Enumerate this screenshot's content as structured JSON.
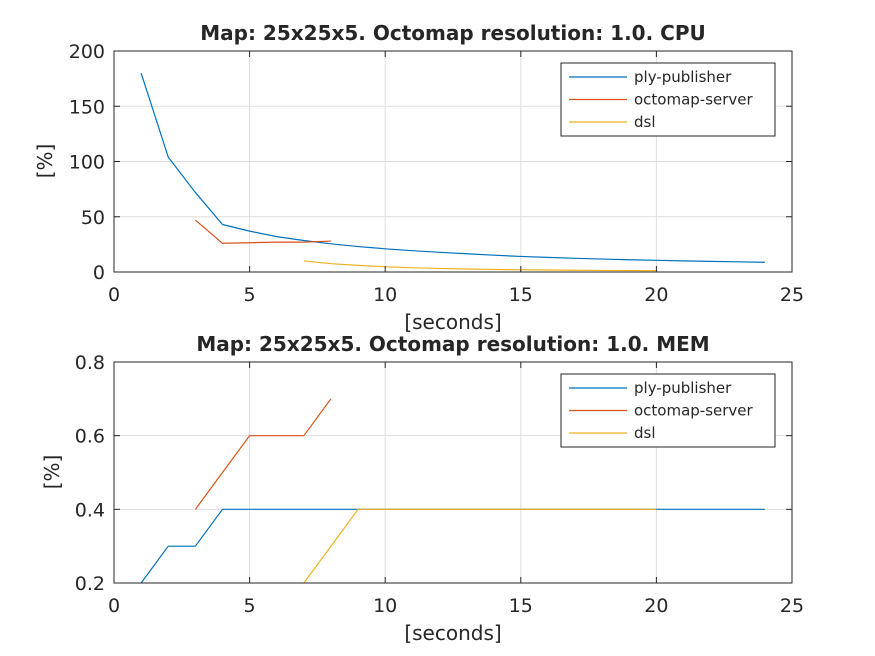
{
  "chart_data": [
    {
      "type": "line",
      "title": "Map: 25x25x5. Octomap resolution: 1.0. CPU",
      "xlabel": "[seconds]",
      "ylabel": "[%]",
      "xlim": [
        0,
        25
      ],
      "ylim": [
        0,
        200
      ],
      "xticks": [
        0,
        5,
        10,
        15,
        20,
        25
      ],
      "yticks": [
        0,
        50,
        100,
        150,
        200
      ],
      "xtick_labels": [
        "0",
        "5",
        "10",
        "15",
        "20",
        "25"
      ],
      "ytick_labels": [
        "0",
        "50",
        "100",
        "150",
        "200"
      ],
      "grid": true,
      "legend_position": "top-right",
      "series": [
        {
          "name": "ply-publisher",
          "color": "#0072BD",
          "x": [
            1,
            2,
            3,
            4,
            5,
            6,
            7,
            8,
            9,
            10,
            11,
            12,
            13,
            14,
            15,
            16,
            17,
            18,
            19,
            20,
            21,
            22,
            23,
            24
          ],
          "y": [
            180,
            104,
            72,
            43,
            37,
            32,
            28.5,
            25.5,
            23,
            21,
            19.3,
            17.8,
            16.5,
            15.2,
            14.1,
            13.2,
            12.4,
            11.7,
            11.1,
            10.6,
            10.1,
            9.6,
            9.2,
            8.8
          ]
        },
        {
          "name": "octomap-server",
          "color": "#D95319",
          "x": [
            3,
            4,
            5,
            6,
            7,
            8
          ],
          "y": [
            47,
            26,
            26.5,
            27,
            27,
            28
          ]
        },
        {
          "name": "dsl",
          "color": "#EDB120",
          "x": [
            7,
            8,
            9,
            10,
            11,
            12,
            13,
            14,
            15,
            16,
            17,
            18,
            19,
            20
          ],
          "y": [
            10,
            7.5,
            6,
            4.8,
            3.8,
            3.2,
            2.7,
            2.3,
            2,
            1.8,
            1.6,
            1.4,
            1.3,
            1.2
          ]
        }
      ]
    },
    {
      "type": "line",
      "title": "Map: 25x25x5. Octomap resolution: 1.0. MEM",
      "xlabel": "[seconds]",
      "ylabel": "[%]",
      "xlim": [
        0,
        25
      ],
      "ylim": [
        0.2,
        0.8
      ],
      "xticks": [
        0,
        5,
        10,
        15,
        20,
        25
      ],
      "yticks": [
        0.2,
        0.4,
        0.6,
        0.8
      ],
      "xtick_labels": [
        "0",
        "5",
        "10",
        "15",
        "20",
        "25"
      ],
      "ytick_labels": [
        "0.2",
        "0.4",
        "0.6",
        "0.8"
      ],
      "grid": true,
      "legend_position": "top-right",
      "series": [
        {
          "name": "ply-publisher",
          "color": "#0072BD",
          "x": [
            1,
            2,
            3,
            4,
            5,
            6,
            7,
            8,
            9,
            10,
            15,
            20,
            24
          ],
          "y": [
            0.2,
            0.3,
            0.3,
            0.4,
            0.4,
            0.4,
            0.4,
            0.4,
            0.4,
            0.4,
            0.4,
            0.4,
            0.4
          ]
        },
        {
          "name": "octomap-server",
          "color": "#D95319",
          "x": [
            3,
            4,
            5,
            6,
            7,
            8
          ],
          "y": [
            0.4,
            0.5,
            0.6,
            0.6,
            0.6,
            0.7
          ]
        },
        {
          "name": "dsl",
          "color": "#EDB120",
          "x": [
            7,
            8,
            9,
            10,
            15,
            20
          ],
          "y": [
            0.2,
            0.3,
            0.4,
            0.4,
            0.4,
            0.4
          ]
        }
      ]
    }
  ]
}
